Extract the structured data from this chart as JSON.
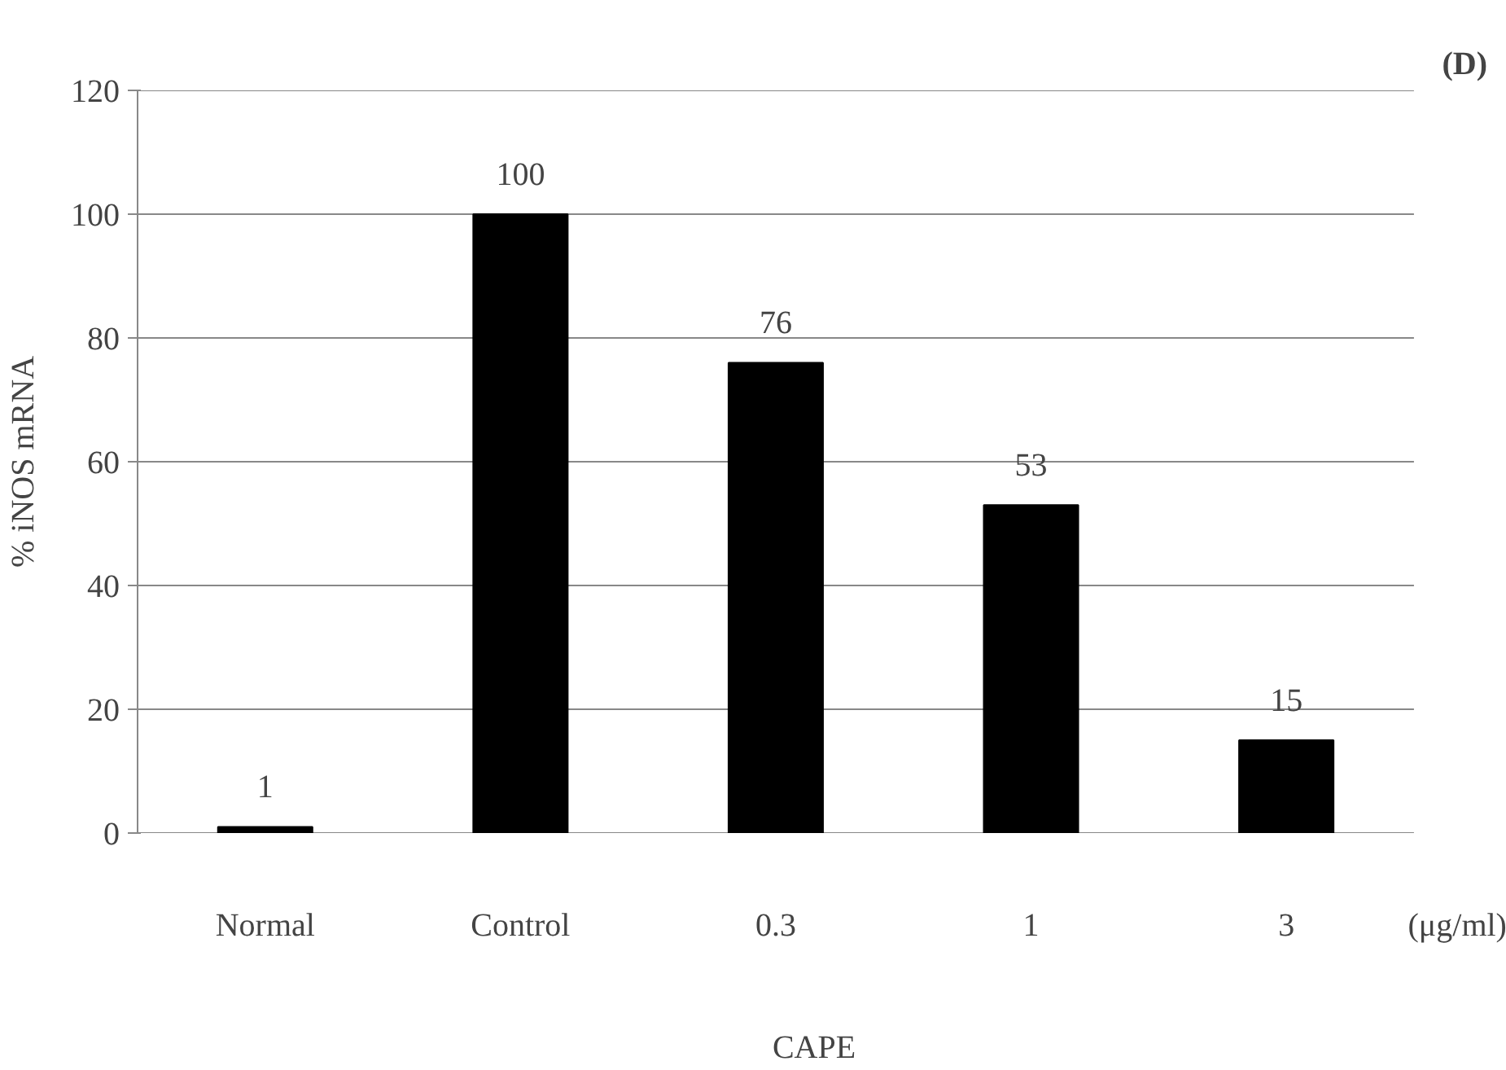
{
  "chart_data": {
    "type": "bar",
    "title": "(D)",
    "xlabel": "CAPE",
    "ylabel": "% iNOS mRNA",
    "categories": [
      "Normal",
      "Control",
      "0.3",
      "1",
      "3"
    ],
    "values": [
      1,
      100,
      76,
      53,
      15
    ],
    "color": "#000000",
    "ylim": [
      0,
      120
    ],
    "yticks": [
      0,
      20,
      40,
      60,
      80,
      100,
      120
    ],
    "grid": "y",
    "data_labels": true,
    "annotations": [
      "(μg/ml)"
    ]
  }
}
